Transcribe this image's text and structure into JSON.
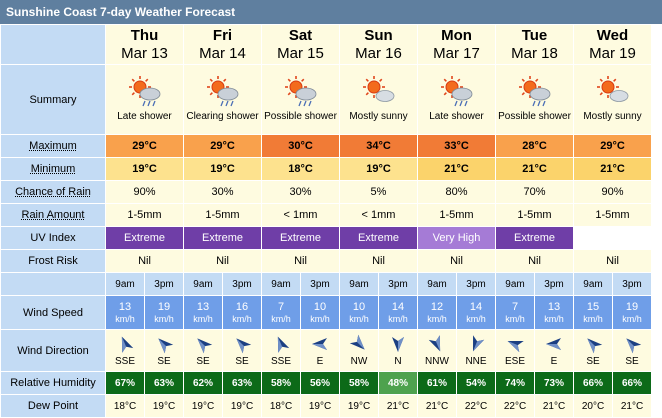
{
  "title": "Sunshine Coast 7-day Weather Forecast",
  "labels": {
    "summary": "Summary",
    "maximum": "Maximum",
    "minimum": "Minimum",
    "chance_of_rain": "Chance of Rain",
    "rain_amount": "Rain Amount",
    "uv_index": "UV Index",
    "frost_risk": "Frost Risk",
    "wind_speed": "Wind Speed",
    "wind_direction": "Wind Direction",
    "relative_humidity": "Relative Humidity",
    "dew_point": "Dew Point"
  },
  "wind_unit": "km/h",
  "days": [
    {
      "day": "Thu",
      "date": "Mar 13",
      "summary": "Late shower",
      "icon": "partly-cloudy-shower-icon",
      "max": "29°C",
      "max_color": "#f9a14c",
      "min": "19°C",
      "min_color": "#fde28e",
      "rain_chance": "90%",
      "rain_amount": "1-5mm",
      "uv": "Extreme",
      "uv_color": "#6f3ea7",
      "frost": "Nil",
      "times": [
        "9am",
        "3pm"
      ],
      "wind_speed": [
        "13",
        "19"
      ],
      "wind_dir": [
        "SSE",
        "SE"
      ],
      "wind_deg": [
        337,
        315
      ],
      "humidity": [
        "67%",
        "63%"
      ],
      "humidity_color": [
        "#0c6a18",
        "#0c6a18"
      ],
      "dew": [
        "18°C",
        "19°C"
      ]
    },
    {
      "day": "Fri",
      "date": "Mar 14",
      "summary": "Clearing shower",
      "icon": "partly-cloudy-shower-icon",
      "max": "29°C",
      "max_color": "#f9a14c",
      "min": "19°C",
      "min_color": "#fde28e",
      "rain_chance": "30%",
      "rain_amount": "1-5mm",
      "uv": "Extreme",
      "uv_color": "#6f3ea7",
      "frost": "Nil",
      "times": [
        "9am",
        "3pm"
      ],
      "wind_speed": [
        "13",
        "16"
      ],
      "wind_dir": [
        "SE",
        "SE"
      ],
      "wind_deg": [
        315,
        315
      ],
      "humidity": [
        "62%",
        "63%"
      ],
      "humidity_color": [
        "#0c6a18",
        "#0c6a18"
      ],
      "dew": [
        "19°C",
        "19°C"
      ]
    },
    {
      "day": "Sat",
      "date": "Mar 15",
      "summary": "Possible shower",
      "icon": "partly-cloudy-shower-icon",
      "max": "30°C",
      "max_color": "#f17b36",
      "min": "18°C",
      "min_color": "#fde28e",
      "rain_chance": "30%",
      "rain_amount": "< 1mm",
      "uv": "Extreme",
      "uv_color": "#6f3ea7",
      "frost": "Nil",
      "times": [
        "9am",
        "3pm"
      ],
      "wind_speed": [
        "7",
        "10"
      ],
      "wind_dir": [
        "SSE",
        "E"
      ],
      "wind_deg": [
        337,
        270
      ],
      "humidity": [
        "58%",
        "56%"
      ],
      "humidity_color": [
        "#0c6a18",
        "#0c6a18"
      ],
      "dew": [
        "18°C",
        "19°C"
      ]
    },
    {
      "day": "Sun",
      "date": "Mar 16",
      "summary": "Mostly sunny",
      "icon": "mostly-sunny-icon",
      "max": "34°C",
      "max_color": "#f17b36",
      "min": "19°C",
      "min_color": "#fde28e",
      "rain_chance": "5%",
      "rain_amount": "< 1mm",
      "uv": "Extreme",
      "uv_color": "#6f3ea7",
      "frost": "Nil",
      "times": [
        "9am",
        "3pm"
      ],
      "wind_speed": [
        "10",
        "14"
      ],
      "wind_dir": [
        "NW",
        "N"
      ],
      "wind_deg": [
        135,
        180
      ],
      "humidity": [
        "58%",
        "48%"
      ],
      "humidity_color": [
        "#0c6a18",
        "#4ea24e"
      ],
      "dew": [
        "19°C",
        "21°C"
      ]
    },
    {
      "day": "Mon",
      "date": "Mar 17",
      "summary": "Late shower",
      "icon": "partly-cloudy-shower-icon",
      "max": "33°C",
      "max_color": "#f17b36",
      "min": "21°C",
      "min_color": "#fbd36b",
      "rain_chance": "80%",
      "rain_amount": "1-5mm",
      "uv": "Very High",
      "uv_color": "#a57bd6",
      "frost": "Nil",
      "times": [
        "9am",
        "3pm"
      ],
      "wind_speed": [
        "12",
        "14"
      ],
      "wind_dir": [
        "NNW",
        "NNE"
      ],
      "wind_deg": [
        157,
        202
      ],
      "humidity": [
        "61%",
        "54%"
      ],
      "humidity_color": [
        "#0c6a18",
        "#0c6a18"
      ],
      "dew": [
        "21°C",
        "22°C"
      ]
    },
    {
      "day": "Tue",
      "date": "Mar 18",
      "summary": "Possible shower",
      "icon": "partly-cloudy-shower-icon",
      "max": "28°C",
      "max_color": "#f9a14c",
      "min": "21°C",
      "min_color": "#fbd36b",
      "rain_chance": "70%",
      "rain_amount": "1-5mm",
      "uv": "Extreme",
      "uv_color": "#6f3ea7",
      "frost": "Nil",
      "times": [
        "9am",
        "3pm"
      ],
      "wind_speed": [
        "7",
        "13"
      ],
      "wind_dir": [
        "ESE",
        "E"
      ],
      "wind_deg": [
        292,
        270
      ],
      "humidity": [
        "74%",
        "73%"
      ],
      "humidity_color": [
        "#0c6a18",
        "#0c6a18"
      ],
      "dew": [
        "22°C",
        "21°C"
      ]
    },
    {
      "day": "Wed",
      "date": "Mar 19",
      "summary": "Mostly sunny",
      "icon": "mostly-sunny-icon",
      "max": "29°C",
      "max_color": "#f9a14c",
      "min": "21°C",
      "min_color": "#fbd36b",
      "rain_chance": "90%",
      "rain_amount": "1-5mm",
      "uv": "",
      "uv_color": "",
      "frost": "Nil",
      "times": [
        "9am",
        "3pm"
      ],
      "wind_speed": [
        "15",
        "19"
      ],
      "wind_dir": [
        "SE",
        "SE"
      ],
      "wind_deg": [
        315,
        315
      ],
      "humidity": [
        "66%",
        "66%"
      ],
      "humidity_color": [
        "#0c6a18",
        "#0c6a18"
      ],
      "dew": [
        "20°C",
        "21°C"
      ]
    }
  ]
}
